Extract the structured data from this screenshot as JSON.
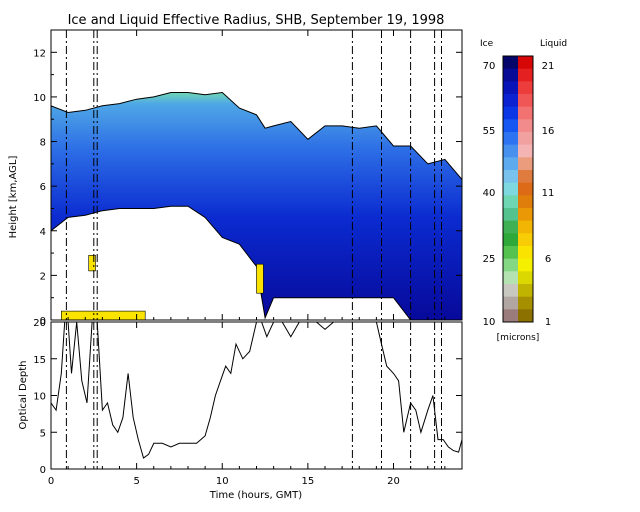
{
  "chart_data": [
    {
      "type": "heatmap",
      "title": "Ice and Liquid Effective Radius, SHB, September 19, 1998",
      "ylabel": "Height [km,AGL]",
      "xlim": [
        0,
        24
      ],
      "ylim": [
        0,
        13
      ],
      "xticks": [
        0,
        5,
        10,
        15,
        20
      ],
      "yticks": [
        0,
        2,
        4,
        6,
        8,
        10,
        12
      ],
      "ice_cloud_layers": [
        {
          "x": 0.0,
          "base": 4.0,
          "top": 9.6
        },
        {
          "x": 1.0,
          "base": 4.6,
          "top": 9.3
        },
        {
          "x": 2.0,
          "base": 4.7,
          "top": 9.4
        },
        {
          "x": 3.0,
          "base": 4.9,
          "top": 9.6
        },
        {
          "x": 4.0,
          "base": 5.0,
          "top": 9.7
        },
        {
          "x": 5.0,
          "base": 5.0,
          "top": 9.9
        },
        {
          "x": 6.0,
          "base": 5.0,
          "top": 10.0
        },
        {
          "x": 7.0,
          "base": 5.1,
          "top": 10.2
        },
        {
          "x": 8.0,
          "base": 5.1,
          "top": 10.2
        },
        {
          "x": 9.0,
          "base": 4.6,
          "top": 10.1
        },
        {
          "x": 10.0,
          "base": 3.7,
          "top": 10.2
        },
        {
          "x": 11.0,
          "base": 3.4,
          "top": 9.5
        },
        {
          "x": 12.0,
          "base": 2.4,
          "top": 9.2
        },
        {
          "x": 12.5,
          "base": 0.1,
          "top": 8.6
        },
        {
          "x": 13.0,
          "base": 1.0,
          "top": 8.7
        },
        {
          "x": 14.0,
          "base": 1.0,
          "top": 8.9
        },
        {
          "x": 15.0,
          "base": 1.0,
          "top": 8.1
        },
        {
          "x": 16.0,
          "base": 1.0,
          "top": 8.7
        },
        {
          "x": 17.0,
          "base": 1.0,
          "top": 8.7
        },
        {
          "x": 18.0,
          "base": 1.0,
          "top": 8.6
        },
        {
          "x": 19.0,
          "base": 1.0,
          "top": 8.7
        },
        {
          "x": 20.0,
          "base": 1.0,
          "top": 7.8
        },
        {
          "x": 21.0,
          "base": 0.0,
          "top": 7.8
        },
        {
          "x": 22.0,
          "base": 0.0,
          "top": 7.0
        },
        {
          "x": 23.0,
          "base": 0.0,
          "top": 7.2
        },
        {
          "x": 24.0,
          "base": 0.0,
          "top": 6.3
        }
      ],
      "liquid_layers": [
        {
          "x_start": 0.6,
          "x_end": 5.5,
          "base": 0.0,
          "top": 0.4,
          "radius_microns": 6
        },
        {
          "x_start": 2.2,
          "x_end": 2.6,
          "base": 2.2,
          "top": 2.9,
          "radius_microns": 6
        },
        {
          "x_start": 12.0,
          "x_end": 12.4,
          "base": 1.2,
          "top": 2.5,
          "radius_microns": 6
        }
      ],
      "event_lines_hours": [
        0.9,
        2.5,
        2.7,
        17.6,
        19.3,
        21.0,
        22.4,
        22.8
      ],
      "colorbar": {
        "ice_label": "Ice",
        "liquid_label": "Liquid",
        "units_label": "[microns]",
        "ice_ticks": [
          "70",
          "55",
          "40",
          "25",
          "10"
        ],
        "liquid_ticks": [
          "21",
          "16",
          "11",
          "6",
          "1"
        ],
        "ice_colors": [
          "#06056a",
          "#070b96",
          "#0814b8",
          "#0a22d2",
          "#0b36e6",
          "#1656f3",
          "#2e74f2",
          "#4790ee",
          "#5eaaee",
          "#79c2ed",
          "#7ed8df",
          "#6fd6b4",
          "#53c28e",
          "#3fb053",
          "#2fa83a",
          "#55c14e",
          "#84d884",
          "#b4e3b1",
          "#c8c8c0",
          "#b2a6a3",
          "#9b7c7c"
        ],
        "liquid_colors": [
          "#d80707",
          "#e52020",
          "#ec3c3c",
          "#f05656",
          "#f27272",
          "#f28b8b",
          "#f2a1a1",
          "#f4b4b4",
          "#eb9c7c",
          "#e07b40",
          "#dc6a16",
          "#e07e0c",
          "#eb9806",
          "#f3b503",
          "#f8cd05",
          "#fbe300",
          "#f4f000",
          "#dbd700",
          "#c0b400",
          "#a69000",
          "#8c7000"
        ]
      }
    },
    {
      "type": "line",
      "ylabel": "Optical Depth",
      "xlabel": "Time (hours, GMT)",
      "xlim": [
        0,
        24
      ],
      "ylim": [
        0,
        20
      ],
      "xticks": [
        0,
        5,
        10,
        15,
        20
      ],
      "yticks": [
        0,
        5,
        10,
        15,
        20
      ],
      "x": [
        0,
        0.3,
        0.6,
        0.8,
        1.0,
        1.2,
        1.5,
        1.8,
        2.1,
        2.4,
        2.7,
        3.0,
        3.3,
        3.6,
        3.9,
        4.2,
        4.5,
        4.8,
        5.1,
        5.4,
        5.7,
        6.0,
        6.5,
        7.0,
        7.5,
        8.0,
        8.5,
        9.0,
        9.3,
        9.6,
        9.9,
        10.2,
        10.5,
        10.8,
        11.2,
        11.6,
        12.0,
        12.3,
        12.6,
        13.0,
        13.5,
        14.0,
        14.5,
        15.0,
        15.5,
        16.0,
        16.5,
        17.0,
        17.5,
        18.0,
        18.5,
        19.0,
        19.3,
        19.6,
        20.0,
        20.3,
        20.6,
        21.0,
        21.3,
        21.6,
        22.0,
        22.3,
        22.6,
        22.9,
        23.2,
        23.5,
        23.8,
        24.0
      ],
      "y": [
        9,
        8,
        13,
        20,
        20,
        13,
        20,
        12,
        9,
        20,
        20,
        8,
        9,
        6,
        5,
        7,
        13,
        7,
        4,
        1.5,
        2,
        3.5,
        3.5,
        3,
        3.5,
        3.5,
        3.5,
        4.5,
        7,
        10,
        12,
        14,
        13,
        17,
        15,
        16,
        20,
        20,
        18,
        20,
        20,
        18,
        20,
        20,
        20,
        19,
        20,
        20,
        20,
        20,
        20,
        20,
        17,
        14,
        13,
        12,
        5,
        9,
        8,
        5,
        8,
        10,
        4,
        4,
        3,
        2.5,
        2.3,
        4
      ]
    }
  ]
}
